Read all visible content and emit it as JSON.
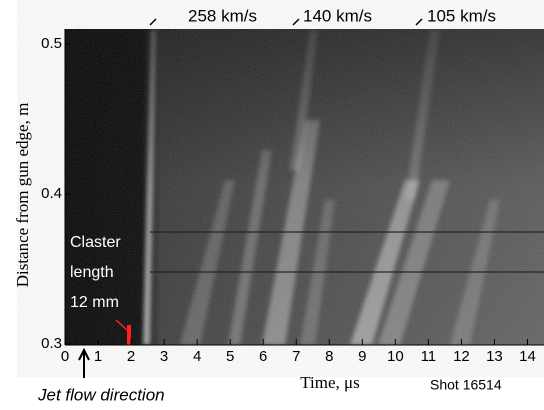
{
  "chart_data": {
    "type": "image",
    "xlabel": "Time, μs",
    "ylabel": "Distance from gun edge, m",
    "xlim": [
      0,
      14.5
    ],
    "xticks": [
      0,
      1,
      2,
      3,
      4,
      5,
      6,
      7,
      8,
      9,
      10,
      11,
      12,
      13,
      14
    ],
    "ylim": [
      0.3,
      0.51
    ],
    "yticks": [
      0.3,
      0.4,
      0.5
    ],
    "annotations": [
      "258 km/s",
      "140 km/s",
      "105 km/s"
    ],
    "claster_label": [
      "Claster",
      "length",
      "12 mm"
    ],
    "flow_label": "Jet flow direction",
    "shot_label": "Shot 16514"
  }
}
